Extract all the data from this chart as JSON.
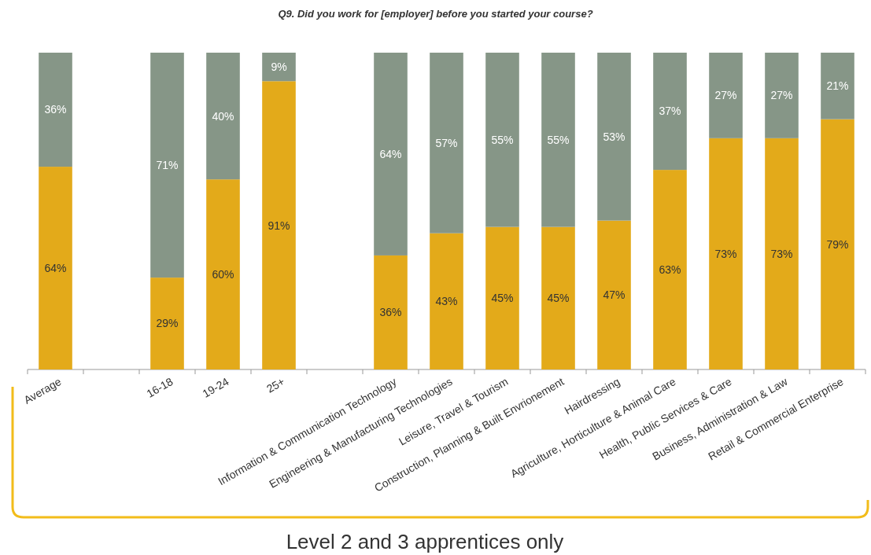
{
  "chart_data": {
    "type": "bar",
    "title": "Q9. Did you work for [employer] before you started your course?",
    "categories": [
      "Average",
      null,
      "16-18",
      "19-24",
      "25+",
      null,
      "Information & Communication Technology",
      "Engineering & Manufacturing Technologies",
      "Leisure, Travel & Tourism",
      "Construction, Planning & Built Envrionement",
      "Hairdressing",
      "Agriculture, Horticulture & Animal Care",
      "Health, Public Services & Care",
      "Business, Administration & Law",
      "Retail & Commercial Enterprise"
    ],
    "stacked": true,
    "series": [
      {
        "color": "#e3aa1a",
        "values": [
          64,
          null,
          29,
          60,
          91,
          null,
          36,
          43,
          45,
          45,
          47,
          63,
          73,
          73,
          79
        ],
        "value_labels": [
          "64%",
          null,
          "29%",
          "60%",
          "91%",
          null,
          "36%",
          "43%",
          "45%",
          "45%",
          "47%",
          "63%",
          "73%",
          "73%",
          "79%"
        ]
      },
      {
        "color": "#869687",
        "values": [
          36,
          null,
          71,
          40,
          9,
          null,
          64,
          57,
          55,
          55,
          53,
          37,
          27,
          27,
          21
        ],
        "value_labels": [
          "36%",
          null,
          "71%",
          "40%",
          "9%",
          null,
          "64%",
          "57%",
          "55%",
          "55%",
          "53%",
          "37%",
          "27%",
          "27%",
          "21%"
        ]
      }
    ],
    "ylim": [
      0,
      100
    ],
    "tick_labels": "x",
    "annotations": [
      "Level 2 and 3 apprentices only"
    ]
  }
}
